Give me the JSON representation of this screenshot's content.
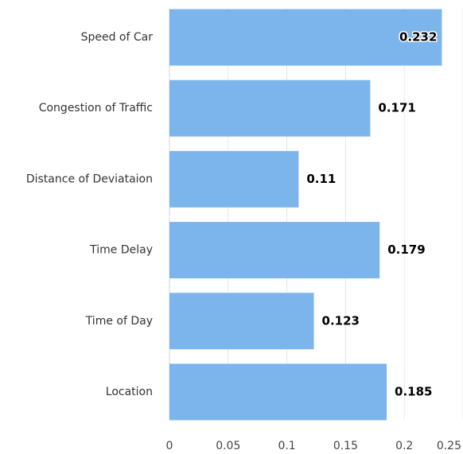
{
  "chart_data": {
    "type": "bar",
    "orientation": "horizontal",
    "categories": [
      "Speed of Car",
      "Congestion of Traffic",
      "Distance of Deviataion",
      "Time Delay",
      "Time of Day",
      "Location"
    ],
    "values": [
      0.232,
      0.171,
      0.11,
      0.179,
      0.123,
      0.185
    ],
    "color": "#7cb5ec",
    "xlim": [
      0,
      0.25
    ],
    "xticks": [
      0,
      0.05,
      0.1,
      0.15,
      0.2,
      0.25
    ],
    "grid": true
  }
}
